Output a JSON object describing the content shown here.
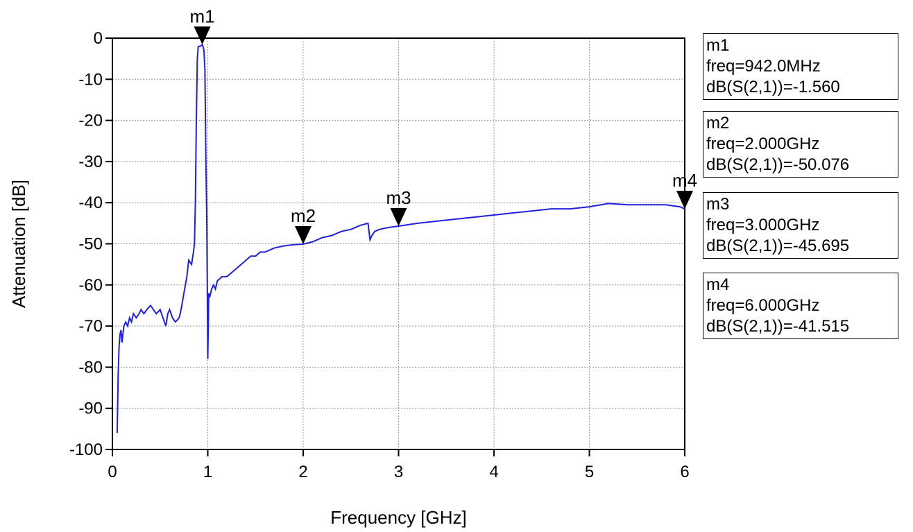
{
  "chart_data": {
    "type": "line",
    "xlabel": "Frequency [GHz]",
    "ylabel": "Attenuation [dB]",
    "xlim": [
      0,
      6
    ],
    "ylim": [
      -100,
      0
    ],
    "x_ticks": [
      "0",
      "1",
      "2",
      "3",
      "4",
      "5",
      "6"
    ],
    "y_ticks": [
      "0",
      "-10",
      "-20",
      "-30",
      "-40",
      "-50",
      "-60",
      "-70",
      "-80",
      "-90",
      "-100"
    ],
    "grid": true,
    "series_color": "#1f1fe0",
    "series": [
      {
        "x": [
          0.05,
          0.06,
          0.07,
          0.08,
          0.09,
          0.1,
          0.12,
          0.14,
          0.16,
          0.18,
          0.2,
          0.22,
          0.25,
          0.28,
          0.3,
          0.33,
          0.36,
          0.4,
          0.43,
          0.46,
          0.5,
          0.53,
          0.56,
          0.58,
          0.6,
          0.63,
          0.66,
          0.7,
          0.72,
          0.75,
          0.78,
          0.8,
          0.83,
          0.85,
          0.86,
          0.87,
          0.88,
          0.89,
          0.9,
          0.91,
          0.92,
          0.93,
          0.942,
          0.95,
          0.96,
          0.97,
          0.98,
          0.99,
          1.0,
          1.01,
          1.02,
          1.04,
          1.06,
          1.08,
          1.1,
          1.15,
          1.2,
          1.25,
          1.3,
          1.35,
          1.4,
          1.45,
          1.5,
          1.55,
          1.6,
          1.7,
          1.8,
          1.9,
          2.0,
          2.1,
          2.2,
          2.3,
          2.4,
          2.5,
          2.6,
          2.68,
          2.7,
          2.72,
          2.75,
          2.8,
          2.9,
          3.0,
          3.2,
          3.4,
          3.6,
          3.8,
          4.0,
          4.2,
          4.4,
          4.6,
          4.8,
          5.0,
          5.2,
          5.4,
          5.6,
          5.8,
          5.95,
          6.0
        ],
        "y": [
          -96,
          -82,
          -75,
          -72,
          -71,
          -74,
          -70,
          -69,
          -70,
          -68,
          -69,
          -67,
          -68,
          -67,
          -66,
          -67,
          -66,
          -65,
          -66,
          -67,
          -66,
          -68,
          -70,
          -67,
          -66,
          -68,
          -69,
          -68,
          -66,
          -62,
          -58,
          -54,
          -55,
          -52,
          -50,
          -40,
          -20,
          -5,
          -2,
          -2,
          -2,
          -1.8,
          -1.56,
          -2,
          -3,
          -8,
          -30,
          -45,
          -78,
          -62,
          -63,
          -61,
          -60,
          -61,
          -59,
          -58,
          -58,
          -57,
          -56,
          -55,
          -54,
          -53,
          -53,
          -52,
          -52,
          -51,
          -50.5,
          -50.2,
          -50.076,
          -49.5,
          -48.5,
          -48,
          -47,
          -46.5,
          -45.5,
          -45,
          -49,
          -48,
          -47,
          -46.5,
          -46,
          -45.695,
          -45,
          -44.5,
          -44,
          -43.5,
          -43,
          -42.5,
          -42,
          -41.5,
          -41.5,
          -41,
          -40.2,
          -40.5,
          -40.5,
          -40.5,
          -41,
          -41.515
        ]
      }
    ],
    "markers": [
      {
        "label": "m1",
        "x": 0.942,
        "y": -1.56
      },
      {
        "label": "m2",
        "x": 2.0,
        "y": -50.076
      },
      {
        "label": "m3",
        "x": 3.0,
        "y": -45.695
      },
      {
        "label": "m4",
        "x": 6.0,
        "y": -41.515
      }
    ]
  },
  "readouts": [
    {
      "name": "m1",
      "freq": "freq=942.0MHz",
      "value": "dB(S(2,1))=-1.560"
    },
    {
      "name": "m2",
      "freq": "freq=2.000GHz",
      "value": "dB(S(2,1))=-50.076"
    },
    {
      "name": "m3",
      "freq": "freq=3.000GHz",
      "value": "dB(S(2,1))=-45.695"
    },
    {
      "name": "m4",
      "freq": "freq=6.000GHz",
      "value": "dB(S(2,1))=-41.515"
    }
  ]
}
